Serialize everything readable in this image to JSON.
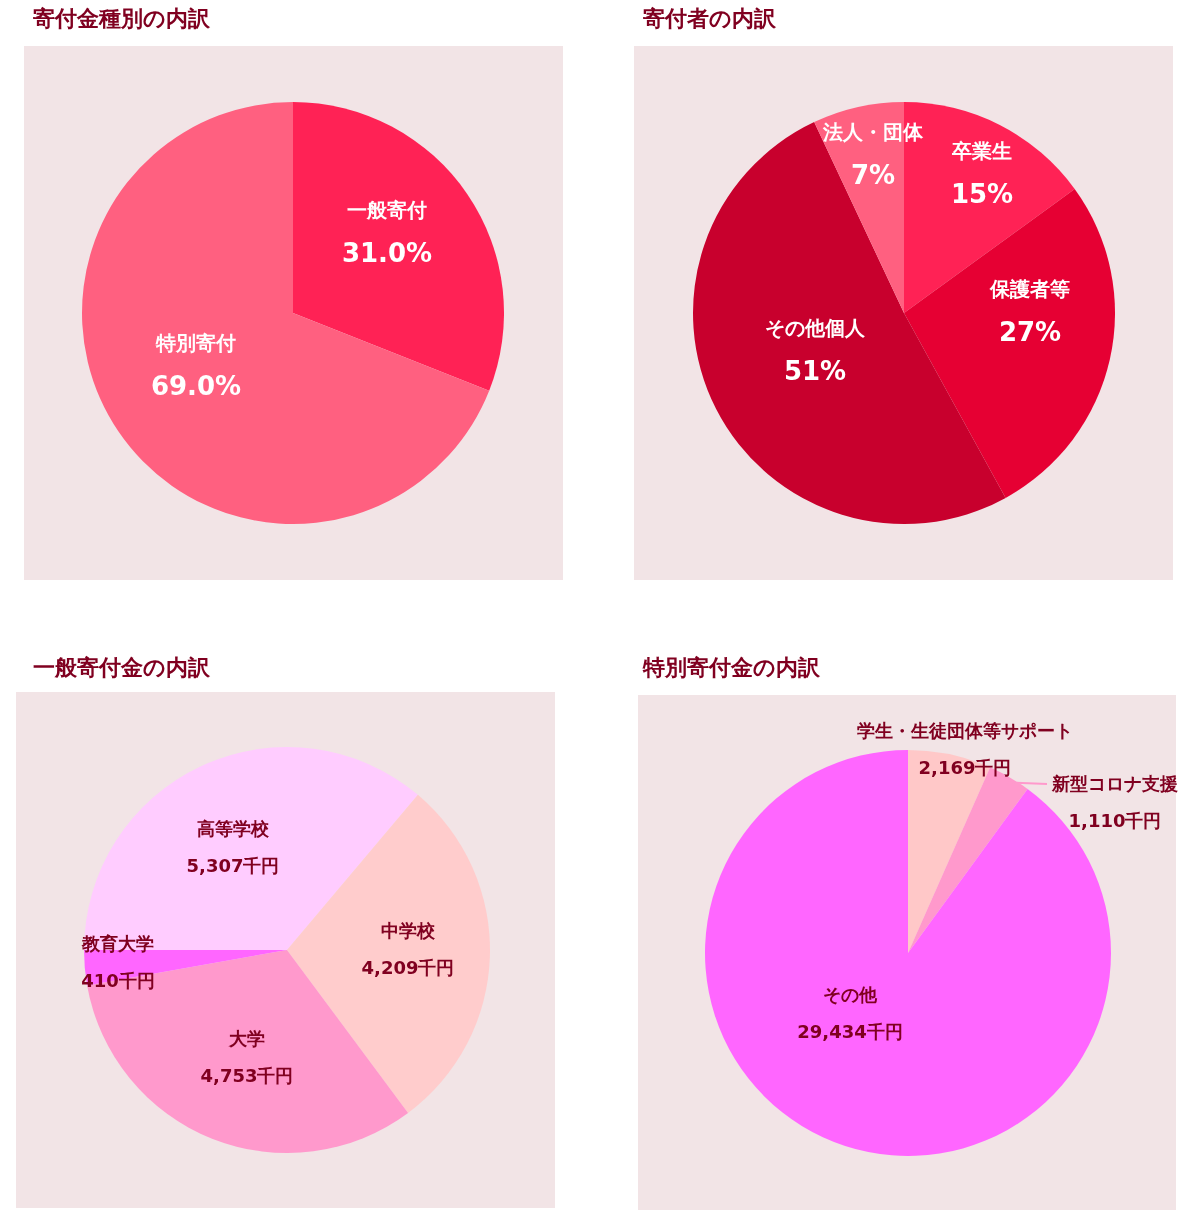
{
  "chart_data": [
    {
      "type": "pie",
      "title": "寄付金種別の内訳",
      "categories": [
        "一般寄付",
        "特別寄付"
      ],
      "values": [
        31.0,
        69.0
      ],
      "colors": [
        "#ff2255",
        "#ff6080"
      ],
      "value_labels": [
        "31.0%",
        "69.0%"
      ]
    },
    {
      "type": "pie",
      "title": "寄付者の内訳",
      "categories": [
        "卒業生",
        "保護者等",
        "その他個人",
        "法人・団体"
      ],
      "values": [
        15,
        27,
        51,
        7
      ],
      "colors": [
        "#ff2255",
        "#e60033",
        "#c8002d",
        "#ff6080"
      ],
      "value_labels": [
        "15%",
        "27%",
        "51%",
        "7%"
      ]
    },
    {
      "type": "pie",
      "title": "一般寄付金の内訳",
      "categories": [
        "高等学校",
        "中学校",
        "大学",
        "教育大学"
      ],
      "values": [
        5307,
        4209,
        4753,
        410
      ],
      "colors": [
        "#ffccff",
        "#ffcccc",
        "#ff99cc",
        "#ff66ff"
      ],
      "value_labels": [
        "5,307千円",
        "4,209千円",
        "4,753千円",
        "410千円"
      ]
    },
    {
      "type": "pie",
      "title": "特別寄付金の内訳",
      "categories": [
        "学生・生徒団体等サポート",
        "新型コロナ支援",
        "その他"
      ],
      "values": [
        2169,
        1110,
        29434
      ],
      "colors": [
        "#ffc8c8",
        "#ff99cc",
        "#ff66ff"
      ],
      "value_labels": [
        "2,169千円",
        "1,110千円",
        "29,434千円"
      ]
    }
  ]
}
